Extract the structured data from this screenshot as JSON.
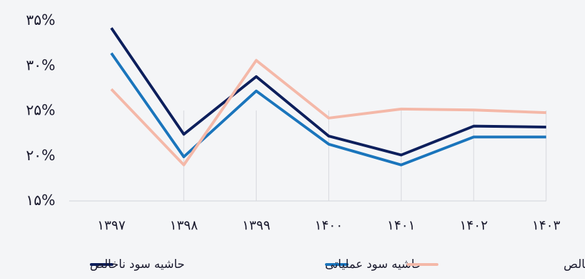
{
  "chart_data": {
    "type": "line",
    "categories": [
      "۱۳۹۷",
      "۱۳۹۸",
      "۱۳۹۹",
      "۱۴۰۰",
      "۱۴۰۱",
      "۱۴۰۲",
      "۱۴۰۳"
    ],
    "series": [
      {
        "name": "حاشیه سود ناخالص",
        "color": "#0d1f5c",
        "values": [
          34.2,
          22.4,
          28.8,
          22.2,
          20.1,
          23.3,
          23.2
        ]
      },
      {
        "name": "حاشیه سود عملیاتی",
        "color": "#1a75bc",
        "values": [
          31.4,
          19.9,
          27.2,
          21.3,
          19.0,
          22.1,
          22.1
        ]
      },
      {
        "name": "حاشیه سود خالص",
        "color": "#f4b8a8",
        "values": [
          27.4,
          19.0,
          30.6,
          24.2,
          25.2,
          25.1,
          24.8
        ]
      }
    ],
    "ylim": [
      15,
      35
    ],
    "yticks": [
      {
        "value": 15,
        "label": "۱۵%"
      },
      {
        "value": 20,
        "label": "۲۰%"
      },
      {
        "value": 25,
        "label": "۲۵%"
      },
      {
        "value": 30,
        "label": "۳۰%"
      },
      {
        "value": 35,
        "label": "۳۵%"
      }
    ],
    "grid": true
  }
}
